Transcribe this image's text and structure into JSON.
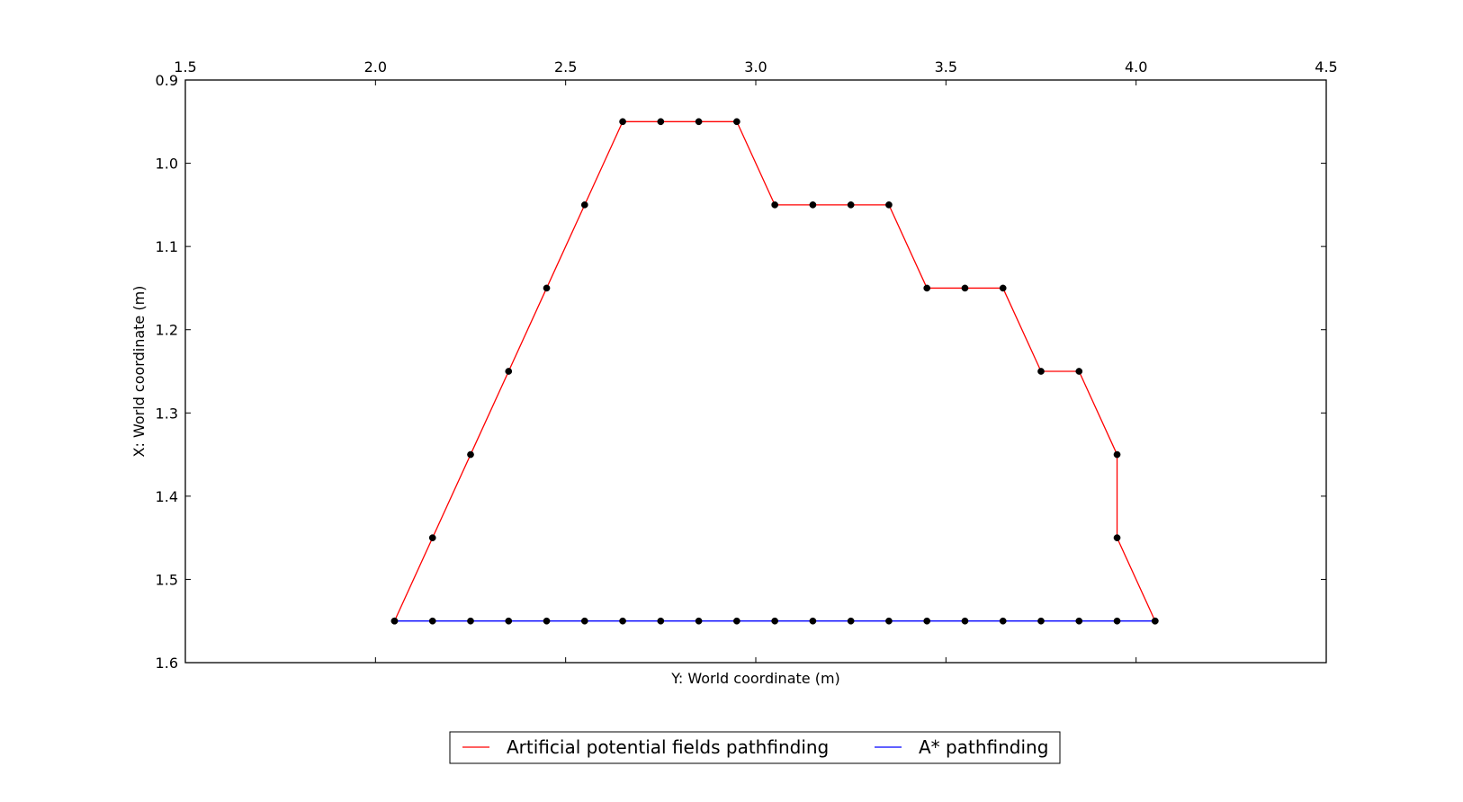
{
  "chart_data": {
    "type": "line",
    "title": "",
    "xlabel": "Y: World coordinate (m)",
    "ylabel": "X: World coordinate (m)",
    "xlim": [
      1.5,
      4.5
    ],
    "ylim": [
      0.9,
      1.6
    ],
    "y_inverted": true,
    "x_axis_position": "top",
    "x_ticks": [
      1.5,
      2.0,
      2.5,
      3.0,
      3.5,
      4.0,
      4.5
    ],
    "x_tick_labels": [
      "1.5",
      "2.0",
      "2.5",
      "3.0",
      "3.5",
      "4.0",
      "4.5"
    ],
    "y_ticks": [
      0.9,
      1.0,
      1.1,
      1.2,
      1.3,
      1.4,
      1.5,
      1.6
    ],
    "y_tick_labels": [
      "0.9",
      "1.0",
      "1.1",
      "1.2",
      "1.3",
      "1.4",
      "1.5",
      "1.6"
    ],
    "grid": false,
    "legend_position": "bottom-center",
    "series": [
      {
        "name": "Artificial potential fields pathfinding",
        "color": "#ff0000",
        "marker_color": "#000000",
        "x": [
          2.05,
          2.15,
          2.25,
          2.35,
          2.45,
          2.55,
          2.65,
          2.75,
          2.85,
          2.95,
          3.05,
          3.15,
          3.25,
          3.35,
          3.45,
          3.55,
          3.65,
          3.75,
          3.85,
          3.95,
          3.95,
          4.05
        ],
        "y": [
          1.55,
          1.45,
          1.35,
          1.25,
          1.15,
          1.05,
          0.95,
          0.95,
          0.95,
          0.95,
          1.05,
          1.05,
          1.05,
          1.05,
          1.15,
          1.15,
          1.15,
          1.25,
          1.25,
          1.35,
          1.45,
          1.55
        ]
      },
      {
        "name": "A* pathfinding",
        "color": "#0000ff",
        "marker_color": "#000000",
        "x": [
          2.05,
          2.15,
          2.25,
          2.35,
          2.45,
          2.55,
          2.65,
          2.75,
          2.85,
          2.95,
          3.05,
          3.15,
          3.25,
          3.35,
          3.45,
          3.55,
          3.65,
          3.75,
          3.85,
          3.95,
          4.05
        ],
        "y": [
          1.55,
          1.55,
          1.55,
          1.55,
          1.55,
          1.55,
          1.55,
          1.55,
          1.55,
          1.55,
          1.55,
          1.55,
          1.55,
          1.55,
          1.55,
          1.55,
          1.55,
          1.55,
          1.55,
          1.55,
          1.55
        ]
      }
    ]
  }
}
